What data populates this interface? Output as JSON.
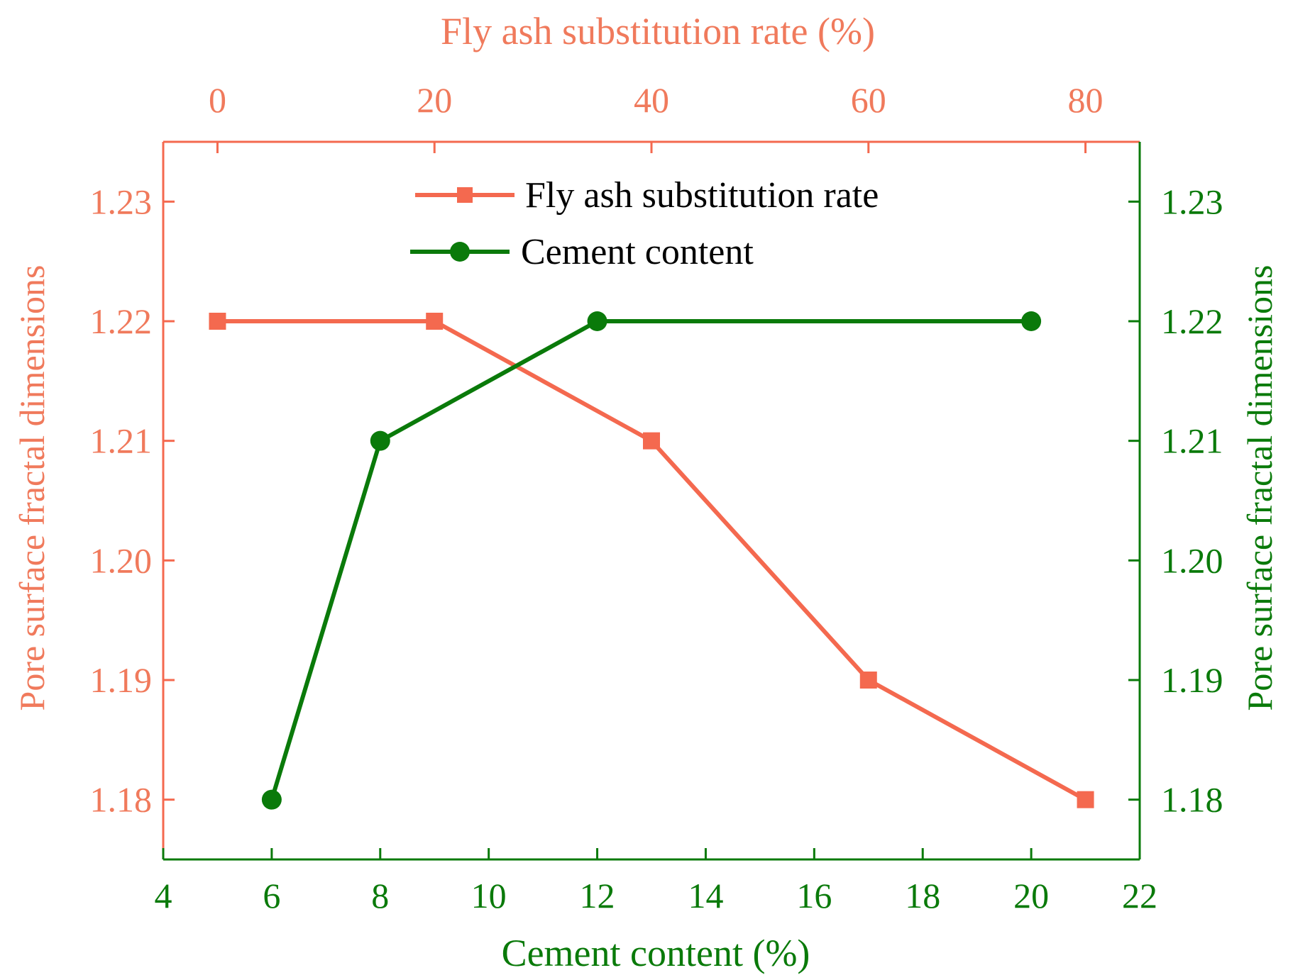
{
  "colors": {
    "fly_ash": "#f4694f",
    "cement": "#0a7a0a",
    "text_fly_ash": "#f07a5c",
    "text_cement": "#0a7a0a"
  },
  "chart_data": {
    "type": "line",
    "top_axis": {
      "label": "Fly ash substitution rate (%)",
      "ticks": [
        0,
        20,
        40,
        60,
        80
      ],
      "tick_labels": [
        "0",
        "20",
        "40",
        "60",
        "80"
      ],
      "range": [
        -5,
        85
      ]
    },
    "bottom_axis": {
      "label": "Cement content (%)",
      "ticks": [
        4,
        6,
        8,
        10,
        12,
        14,
        16,
        18,
        20,
        22
      ],
      "tick_labels": [
        "4",
        "6",
        "8",
        "10",
        "12",
        "14",
        "16",
        "18",
        "20",
        "22"
      ],
      "range": [
        4,
        22
      ]
    },
    "left_axis": {
      "label": "Pore surface fractal dimensions",
      "ticks": [
        1.18,
        1.19,
        1.2,
        1.21,
        1.22,
        1.23
      ],
      "tick_labels": [
        "1.18",
        "1.19",
        "1.20",
        "1.21",
        "1.22",
        "1.23"
      ],
      "range": [
        1.175,
        1.235
      ]
    },
    "right_axis": {
      "label": "Pore surface fractal dimensions",
      "ticks": [
        1.18,
        1.19,
        1.2,
        1.21,
        1.22,
        1.23
      ],
      "tick_labels": [
        "1.18",
        "1.19",
        "1.20",
        "1.21",
        "1.22",
        "1.23"
      ],
      "range": [
        1.175,
        1.235
      ]
    },
    "series": [
      {
        "name": "Fly ash substitution rate",
        "axis": "top",
        "marker": "square",
        "x": [
          0,
          20,
          40,
          60,
          80
        ],
        "y": [
          1.22,
          1.22,
          1.21,
          1.19,
          1.18
        ]
      },
      {
        "name": "Cement content",
        "axis": "bottom",
        "marker": "circle",
        "x": [
          6,
          8,
          12,
          20
        ],
        "y": [
          1.18,
          1.21,
          1.22,
          1.22
        ]
      }
    ],
    "legend": {
      "position": "top-center",
      "entries": [
        "Fly ash substitution rate",
        "Cement content"
      ]
    }
  }
}
